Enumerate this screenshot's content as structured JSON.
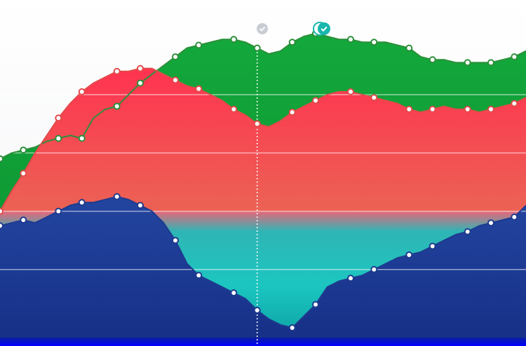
{
  "chart_data": {
    "type": "area",
    "title": "",
    "xlabel": "",
    "ylabel": "",
    "ylim": [
      0,
      100
    ],
    "grid": true,
    "legend": "none",
    "x": [
      0,
      1,
      2,
      3,
      4,
      5,
      6,
      7,
      8,
      9,
      10,
      11,
      12,
      13,
      14,
      15,
      16,
      17,
      18,
      19,
      20,
      21,
      22,
      23,
      24,
      25,
      26,
      27,
      28,
      29,
      30,
      31,
      32,
      33,
      34,
      35,
      36,
      37,
      38,
      39,
      40,
      41,
      42,
      43,
      44,
      45
    ],
    "highlight_index": 22,
    "selected_index": 27,
    "series": [
      {
        "color_top": "#ff2d55",
        "color_bottom": "#e05545",
        "values": [
          40,
          47,
          53,
          60,
          66,
          72,
          77,
          81,
          84,
          86,
          88,
          88,
          89,
          89,
          87,
          85,
          83,
          82,
          80,
          78,
          75,
          73,
          70,
          69,
          71,
          74,
          76,
          78,
          80,
          81,
          81,
          80,
          79,
          78,
          77,
          75,
          74,
          75,
          76,
          75,
          75,
          74,
          75,
          76,
          77,
          79
        ]
      },
      {
        "color_top": "#11a33a",
        "color_bottom": "#0a8a2c",
        "values": [
          58,
          60,
          61,
          62,
          64,
          65,
          66,
          65,
          72,
          75,
          76,
          80,
          84,
          87,
          90,
          93,
          96,
          97,
          98,
          99,
          99,
          98,
          96,
          94,
          95,
          98,
          100,
          101,
          100,
          99,
          99,
          98,
          98,
          98,
          97,
          96,
          93,
          92,
          92,
          91,
          91,
          91,
          91,
          92,
          93,
          95
        ]
      },
      {
        "color_top": "#1a3fa0",
        "color_bottom": "#10308a",
        "values": [
          35,
          36,
          37,
          36,
          38,
          40,
          42,
          43,
          43,
          44,
          45,
          44,
          42,
          40,
          36,
          30,
          22,
          18,
          16,
          14,
          12,
          10,
          6,
          3,
          1,
          0,
          4,
          8,
          14,
          16,
          17,
          18,
          20,
          22,
          24,
          25,
          26,
          28,
          30,
          32,
          33,
          35,
          36,
          37,
          38,
          42
        ]
      }
    ],
    "marker_indices": [
      0,
      2,
      5,
      7,
      10,
      12,
      15,
      17,
      20,
      22,
      25,
      27,
      30,
      32,
      35,
      37,
      40,
      42,
      44
    ],
    "grid_values": [
      20,
      40,
      60,
      80
    ]
  }
}
